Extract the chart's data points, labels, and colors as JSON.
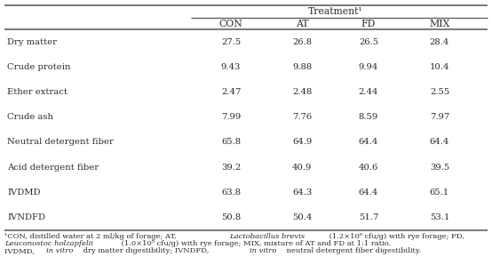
{
  "title": "Treatment¹",
  "col_headers": [
    "CON",
    "AT",
    "FD",
    "MIX"
  ],
  "row_labels": [
    "Dry matter",
    "Crude protein",
    "Ether extract",
    "Crude ash",
    "Neutral detergent fiber",
    "Acid detergent fiber",
    "IVDMD",
    "IVNDFD"
  ],
  "data": [
    [
      "27.5",
      "26.8",
      "26.5",
      "28.4"
    ],
    [
      "9.43",
      "9.88",
      "9.94",
      "10.4"
    ],
    [
      "2.47",
      "2.48",
      "2.44",
      "2.55"
    ],
    [
      "7.99",
      "7.76",
      "8.59",
      "7.97"
    ],
    [
      "65.8",
      "64.9",
      "64.4",
      "64.4"
    ],
    [
      "39.2",
      "40.9",
      "40.6",
      "39.5"
    ],
    [
      "63.8",
      "64.3",
      "64.4",
      "65.1"
    ],
    [
      "50.8",
      "50.4",
      "51.7",
      "53.1"
    ]
  ],
  "footnote_segments": [
    [
      [
        "¹CON, distilled water at 2 ml/kg of forage; AT, ",
        false
      ],
      [
        "Lactobacillus brevis",
        true
      ],
      [
        " (1.2×10⁶ cfu/g) with rye forage; FD,",
        false
      ]
    ],
    [
      [
        "Leuconostoc holzapfelii",
        true
      ],
      [
        " (1.0×10⁵ cfu/g) with rye forage; MIX, mixture of AT and FD at 1:1 ratio.",
        false
      ]
    ],
    [
      [
        "IVDMD, ",
        false
      ],
      [
        "in vitro",
        true
      ],
      [
        " dry matter digestibility; IVNDFD, ",
        false
      ],
      [
        "in vitro",
        true
      ],
      [
        " neutral detergent fiber digestibility.",
        false
      ]
    ]
  ],
  "bg_color": "#ffffff",
  "text_color": "#2a2a2a",
  "line_color": "#555555",
  "font_size": 7.2,
  "header_font_size": 7.8,
  "footnote_font_size": 6.0
}
